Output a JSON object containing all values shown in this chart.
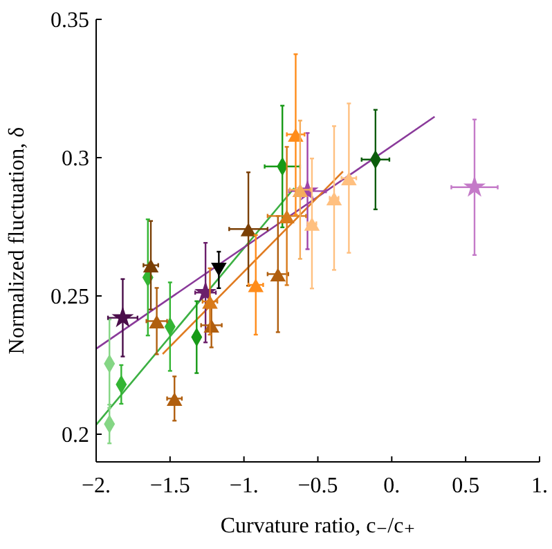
{
  "chart_data": {
    "type": "scatter",
    "xlabel": "Curvature ratio, c₋/c₊",
    "ylabel": "Normalized fluctuation, δ",
    "xlim": [
      -2,
      1
    ],
    "ylim": [
      0.19,
      0.35
    ],
    "xticks": [
      {
        "value": -2,
        "label": "−2."
      },
      {
        "value": -1.5,
        "label": "−1.5"
      },
      {
        "value": -1,
        "label": "−1."
      },
      {
        "value": -0.5,
        "label": "−0.5"
      },
      {
        "value": 0,
        "label": "0."
      },
      {
        "value": 0.5,
        "label": "0.5"
      },
      {
        "value": 1,
        "label": "1."
      }
    ],
    "yticks": [
      0.2,
      0.25,
      0.3,
      0.35
    ],
    "grid": false,
    "series": [
      {
        "type": "line",
        "color": "#3cb043",
        "x": [
          -2,
          -0.66
        ],
        "values": [
          0.2034,
          0.289
        ]
      },
      {
        "type": "line",
        "color": "#8a3a9a",
        "x": [
          -2,
          0.29
        ],
        "values": [
          0.2309,
          0.3148
        ]
      },
      {
        "type": "line",
        "color": "#e07b20",
        "x": [
          -1.55,
          -0.33
        ],
        "values": [
          0.229,
          0.295
        ]
      },
      {
        "marker": "diamond",
        "color": "#85d685",
        "x": [
          -1.91,
          -1.91
        ],
        "values": [
          0.2255,
          0.2037
        ],
        "errors": [
          0.016,
          0.007
        ]
      },
      {
        "marker": "diamond",
        "color": "#33b533",
        "x": [
          -1.83,
          -1.65,
          -1.5
        ],
        "values": [
          0.218,
          0.2567,
          0.2389
        ],
        "errors": [
          0.007,
          0.021,
          0.016
        ]
      },
      {
        "marker": "diamond",
        "color": "#179a17",
        "x": [
          -1.32,
          -0.74
        ],
        "values": [
          0.2351,
          0.2968
        ],
        "errors": [
          0.013,
          0.022
        ],
        "xerrors": [
          null,
          0.12
        ]
      },
      {
        "marker": "diamond",
        "color": "#0c5c0c",
        "x": [
          -0.11
        ],
        "values": [
          0.2993
        ],
        "errors": [
          0.018
        ],
        "xerrors": [
          0.094
        ]
      },
      {
        "marker": "star",
        "color": "#4a0d4a",
        "x": [
          -1.82
        ],
        "values": [
          0.2421
        ],
        "errors": [
          0.014
        ],
        "xerrors": [
          0.1
        ]
      },
      {
        "marker": "star",
        "color": "#6b1f6b",
        "x": [
          -1.26
        ],
        "values": [
          0.2512
        ],
        "errors": [
          0.018
        ],
        "xerrors": [
          0.07
        ]
      },
      {
        "marker": "star",
        "color": "#a044a8",
        "x": [
          -0.57
        ],
        "values": [
          0.2879
        ],
        "errors": [
          0.021
        ],
        "xerrors": [
          0.125
        ]
      },
      {
        "marker": "star",
        "color": "#c47ac8",
        "x": [
          0.56
        ],
        "values": [
          0.2893
        ],
        "errors": [
          0.0245
        ],
        "xerrors": [
          0.157
        ]
      },
      {
        "marker": "triangle-down",
        "color": "#000000",
        "x": [
          -1.17
        ],
        "values": [
          0.2594
        ],
        "errors": [
          0.0066
        ]
      },
      {
        "marker": "triangle",
        "color": "#7a3f05",
        "x": [
          -1.63,
          -0.97
        ],
        "values": [
          0.2611,
          0.2742
        ],
        "errors": [
          0.016,
          0.0205
        ],
        "xerrors": [
          0.05,
          0.13
        ]
      },
      {
        "marker": "triangle",
        "color": "#b05e0e",
        "x": [
          -1.59,
          -1.47,
          -1.22,
          -0.77
        ],
        "values": [
          0.2409,
          0.2129,
          0.2394,
          0.2579
        ],
        "errors": [
          0.012,
          0.008,
          0.008,
          0.021
        ],
        "xerrors": [
          0.07,
          0.05,
          0.07,
          0.07
        ]
      },
      {
        "marker": "triangle",
        "color": "#d87a1a",
        "x": [
          -1.23,
          -0.71
        ],
        "values": [
          0.248,
          0.2789
        ],
        "errors": [
          0.012,
          0.025
        ],
        "xerrors": [
          0.05,
          0.13
        ]
      },
      {
        "marker": "triangle",
        "color": "#ff8c1a",
        "x": [
          -0.92,
          -0.65
        ],
        "values": [
          0.254,
          0.3084
        ],
        "errors": [
          0.018,
          0.029
        ],
        "xerrors": [
          0.05,
          0.06
        ]
      },
      {
        "marker": "triangle",
        "color": "#f5ad5c",
        "x": [
          -0.62
        ],
        "values": [
          0.2884
        ],
        "errors": [
          0.025
        ],
        "xerrors": [
          0.07
        ]
      },
      {
        "marker": "triangle",
        "color": "#ffc080",
        "x": [
          -0.54,
          -0.39,
          -0.29
        ],
        "values": [
          0.2762,
          0.2854,
          0.2926
        ],
        "errors": [
          0.0235,
          0.026,
          0.027
        ],
        "xerrors": [
          0.03,
          0.03,
          0.05
        ]
      }
    ]
  }
}
